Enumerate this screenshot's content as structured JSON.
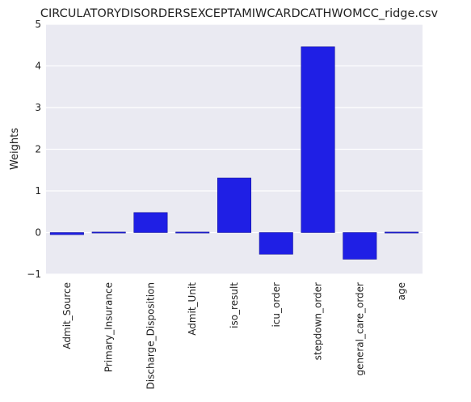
{
  "chart_data": {
    "type": "bar",
    "title": "CIRCULATORYDISORDERSEXCEPTAMIWCARDCATHWOMCC_ridge.csv",
    "xlabel": "",
    "ylabel": "Weights",
    "categories": [
      "Admit_Source",
      "Primary_Insurance",
      "Discharge_Disposition",
      "Admit_Unit",
      "iso_result",
      "icu_order",
      "stepdown_order",
      "general_care_order",
      "age"
    ],
    "values": [
      -0.05,
      -0.01,
      0.48,
      -0.01,
      1.31,
      -0.52,
      4.46,
      -0.64,
      0.02
    ],
    "ylim": [
      -1,
      5
    ],
    "yticks": [
      -1,
      0,
      1,
      2,
      3,
      4,
      5
    ],
    "ytick_labels": [
      "−1",
      "0",
      "1",
      "2",
      "3",
      "4",
      "5"
    ],
    "grid": true,
    "colors": {
      "bar": "#1f1fe5",
      "bar_edge": "#15159e",
      "plot_background": "#eaeaf2",
      "grid": "#ffffff"
    }
  }
}
